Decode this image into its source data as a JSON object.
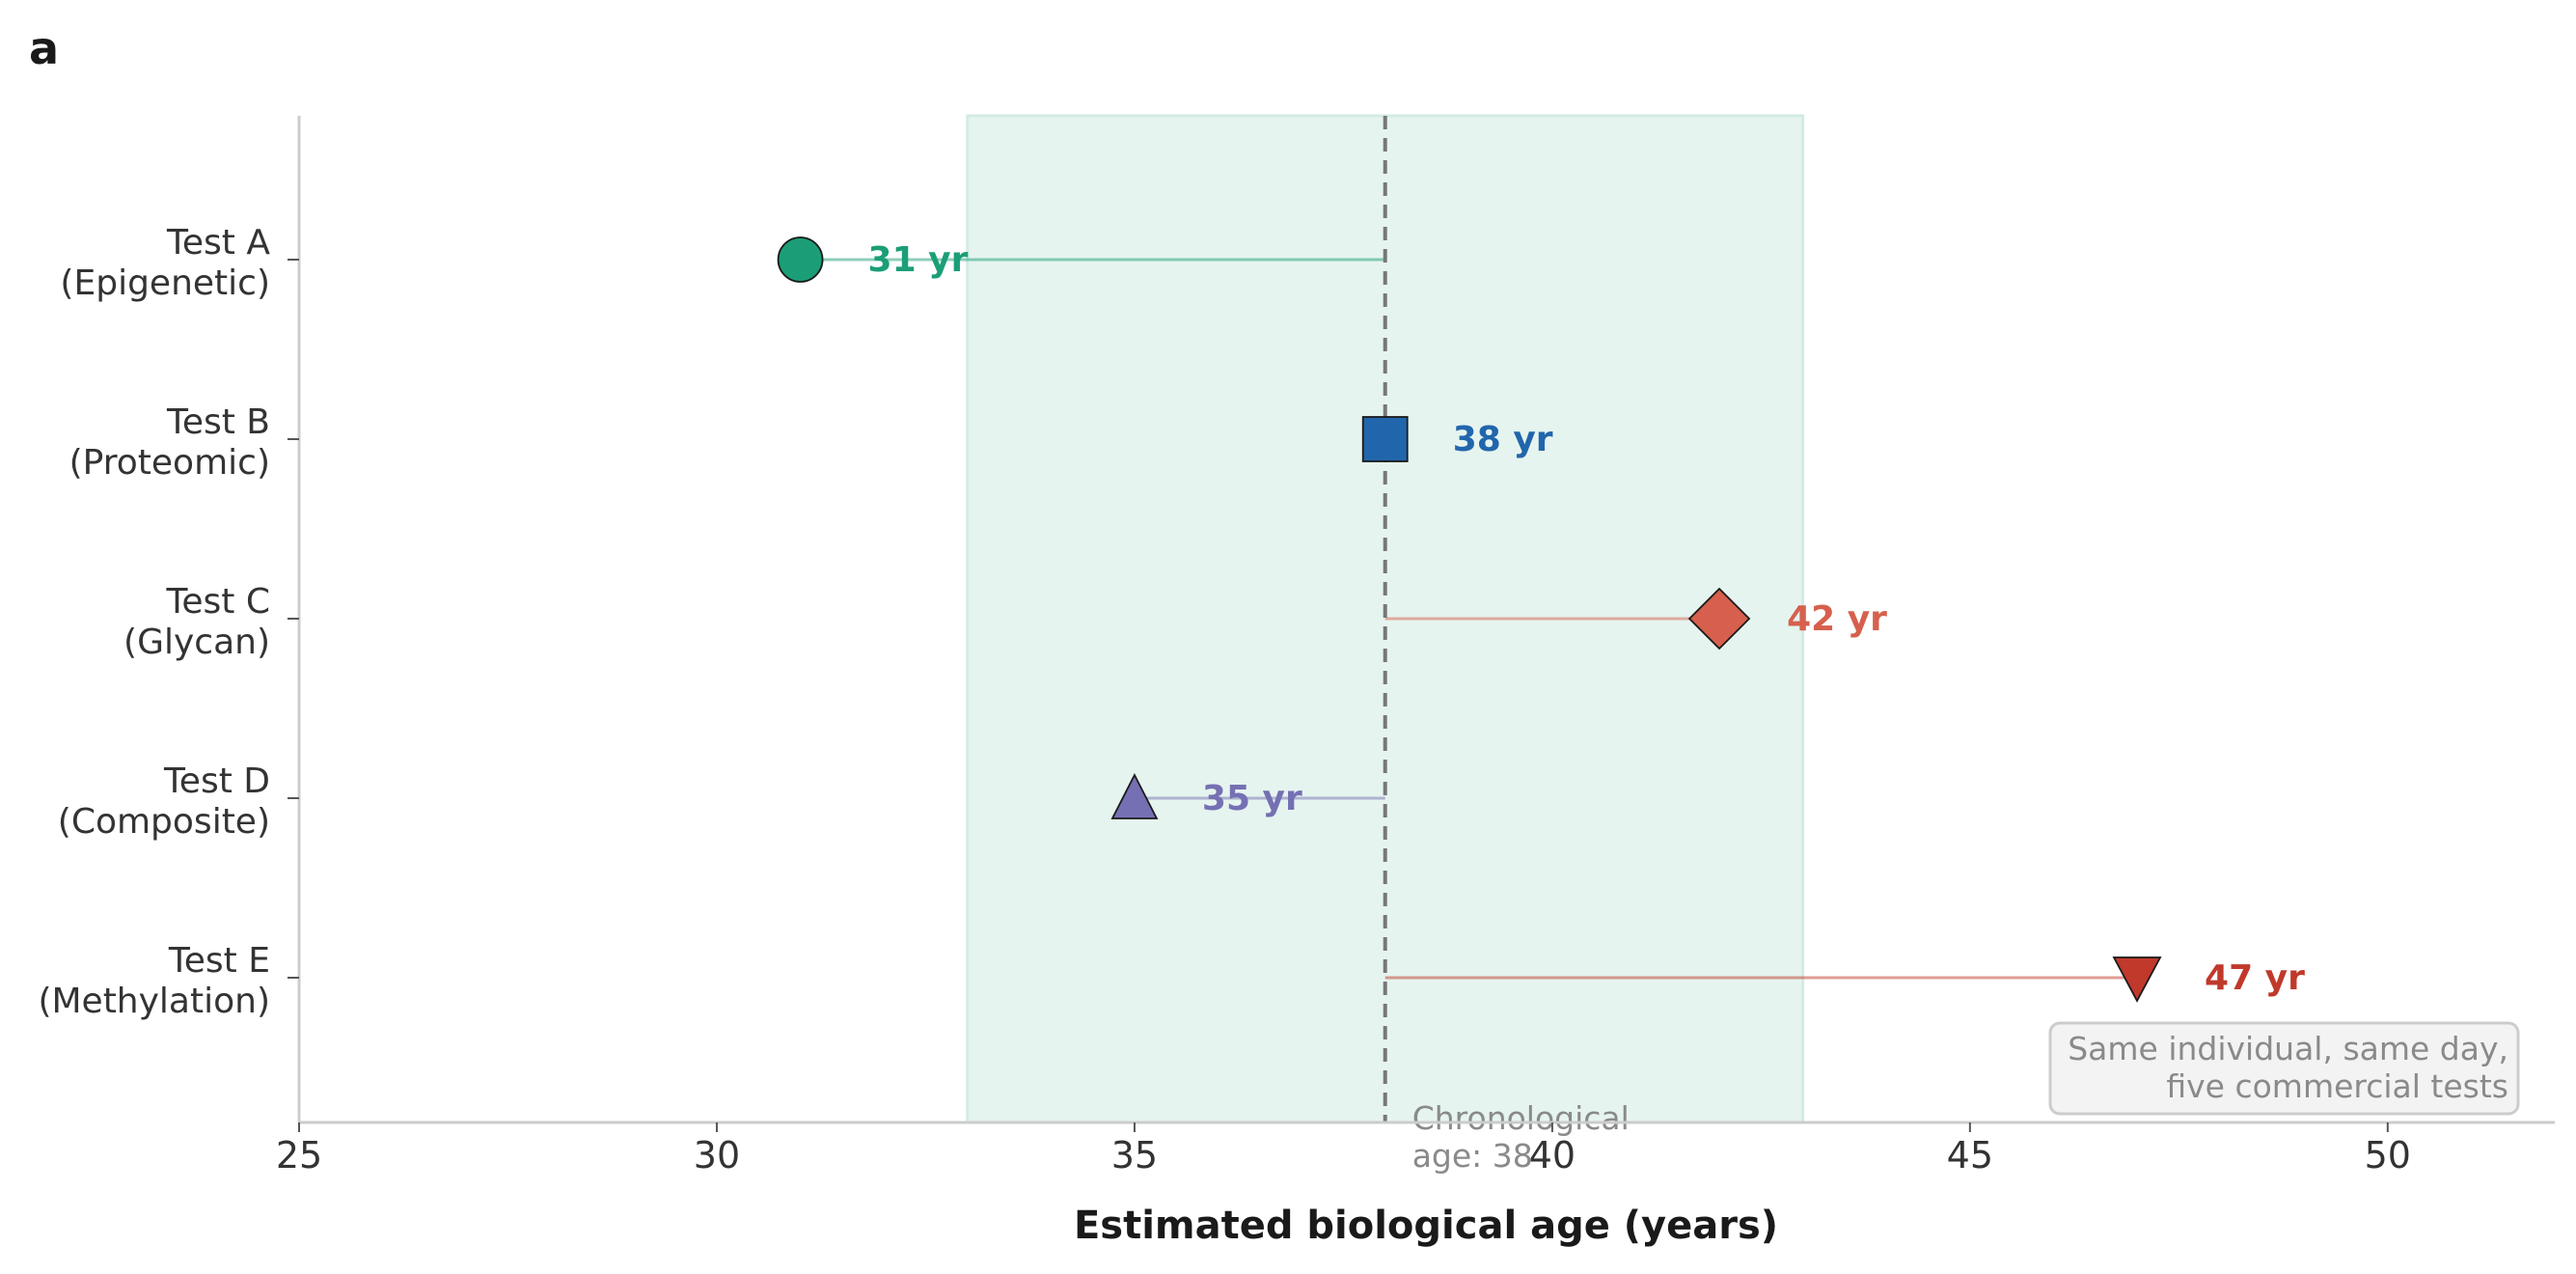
{
  "panel_label": "a",
  "chart_data": {
    "type": "scatter",
    "xlabel": "Estimated biological age (years)",
    "xlim": [
      25,
      52
    ],
    "xticks": [
      25,
      30,
      35,
      40,
      45,
      50
    ],
    "grid": false,
    "reference_line": {
      "value": 38,
      "label_lines": [
        "Chronological",
        "age: 38"
      ]
    },
    "shaded_band": {
      "x_start": 33,
      "x_end": 43,
      "color": "#e6f4ef"
    },
    "points": [
      {
        "label_lines": [
          "Test A",
          "(Epigenetic)"
        ],
        "value": 31,
        "value_label": "31 yr",
        "marker": "circle",
        "color": "#1b9e77",
        "text_color": "#1b9e77"
      },
      {
        "label_lines": [
          "Test B",
          "(Proteomic)"
        ],
        "value": 38,
        "value_label": "38 yr",
        "marker": "square",
        "color": "#2166ac",
        "text_color": "#2166ac"
      },
      {
        "label_lines": [
          "Test C",
          "(Glycan)"
        ],
        "value": 42,
        "value_label": "42 yr",
        "marker": "diamond",
        "color": "#d6604d",
        "text_color": "#d6604d"
      },
      {
        "label_lines": [
          "Test D",
          "(Composite)"
        ],
        "value": 35,
        "value_label": "35 yr",
        "marker": "triangle-up",
        "color": "#7570b3",
        "text_color": "#7570b3"
      },
      {
        "label_lines": [
          "Test E",
          "(Methylation)"
        ],
        "value": 47,
        "value_label": "47 yr",
        "marker": "triangle-down",
        "color": "#c0392b",
        "text_color": "#c0392b"
      }
    ],
    "annotation": {
      "lines": [
        "Same individual, same day,",
        "five commercial tests"
      ]
    }
  }
}
